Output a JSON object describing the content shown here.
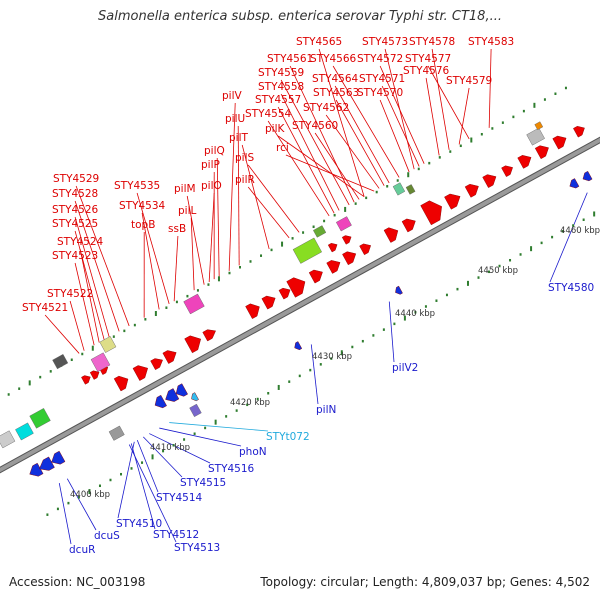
{
  "title": "Salmonella enterica subsp. enterica serovar Typhi str. CT18,...",
  "footer": {
    "accession": "Accession: NC_003198",
    "stats": "Topology: circular; Length: 4,809,037 bp; Genes: 4,502"
  },
  "colors": {
    "forward_label": "#dd0000",
    "reverse_label": "#1a1acc",
    "rna_label": "#22aadd",
    "backbone": "#9a9a9a",
    "tick": "#2f7d2f"
  },
  "top_labels": [
    "STY4565",
    "STY4573",
    "STY4578",
    "STY4583",
    "STY4561",
    "STY4566",
    "STY4572",
    "STY4577",
    "STY4559",
    "STY4576",
    "STY4564",
    "STY4571",
    "STY4558",
    "STY4563",
    "STY4570",
    "STY4579",
    "pilV",
    "STY4557",
    "STY4562",
    "STY4554",
    "pilU",
    "STY4560",
    "pilK",
    "pilT",
    "rci",
    "pilQ",
    "pilS",
    "pilP",
    "pilR",
    "STY4529",
    "STY4535",
    "pilM",
    "pilO",
    "STY4528",
    "STY4534",
    "STY4526",
    "pilL",
    "STY4525",
    "topB",
    "ssB",
    "STY4524",
    "STY4523",
    "STY4522",
    "STY4521"
  ],
  "bottom_labels": [
    "STY4580",
    "pilV2",
    "pilN",
    "STYt072",
    "phoN",
    "STY4516",
    "STY4515",
    "STY4514",
    "STY4510",
    "STY4512",
    "STY4513",
    "dcuS",
    "dcuR"
  ],
  "scale_labels": [
    "4460 kbp",
    "4450 kbp",
    "4440 kbp",
    "4430 kbp",
    "4420 kbp",
    "4410 kbp",
    "4400 kbp"
  ]
}
